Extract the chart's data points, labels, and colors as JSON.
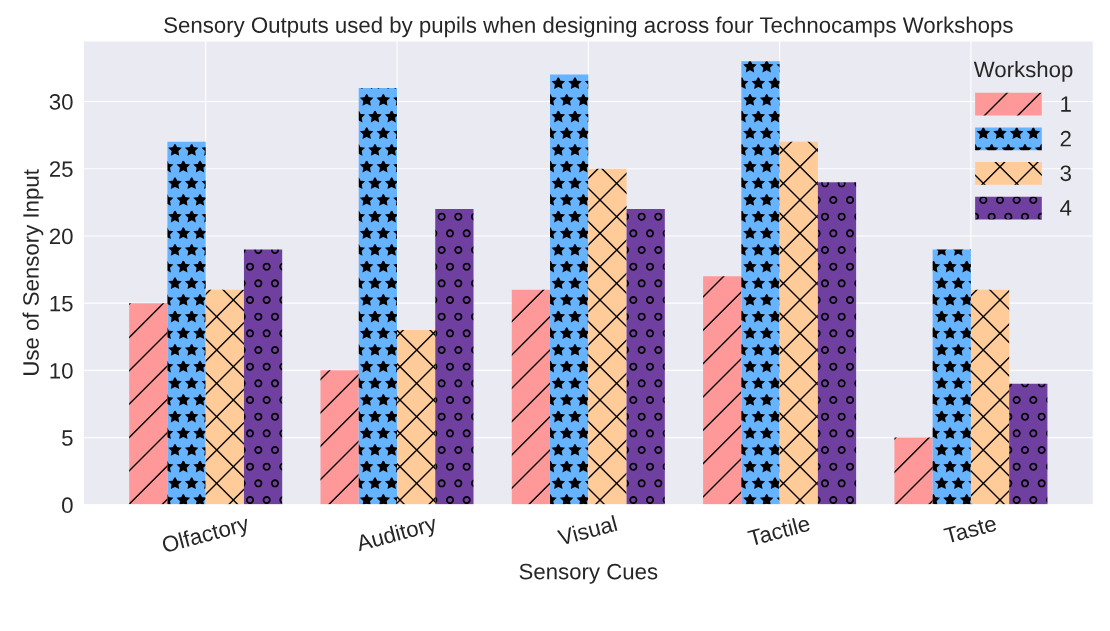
{
  "chart_data": {
    "type": "bar",
    "title": "Sensory Outputs used by pupils when designing across four Technocamps Workshops",
    "xlabel": "Sensory Cues",
    "ylabel": "Use of Sensory Input",
    "legend_title": "Workshop",
    "categories": [
      "Olfactory",
      "Auditory",
      "Visual",
      "Tactile",
      "Taste"
    ],
    "series": [
      {
        "name": "1",
        "color": "#ff9999",
        "values": [
          15,
          10,
          16,
          17,
          5
        ]
      },
      {
        "name": "2",
        "color": "#66b3ff",
        "values": [
          27,
          31,
          32,
          33,
          19
        ]
      },
      {
        "name": "3",
        "color": "#ffcc99",
        "values": [
          16,
          13,
          25,
          27,
          16
        ]
      },
      {
        "name": "4",
        "color": "#7040a0",
        "values": [
          19,
          22,
          22,
          24,
          9
        ]
      }
    ],
    "ylim": [
      0,
      34.5
    ],
    "yticks": [
      0,
      5,
      10,
      15,
      20,
      25,
      30
    ],
    "grid": true,
    "legend": "top right"
  }
}
